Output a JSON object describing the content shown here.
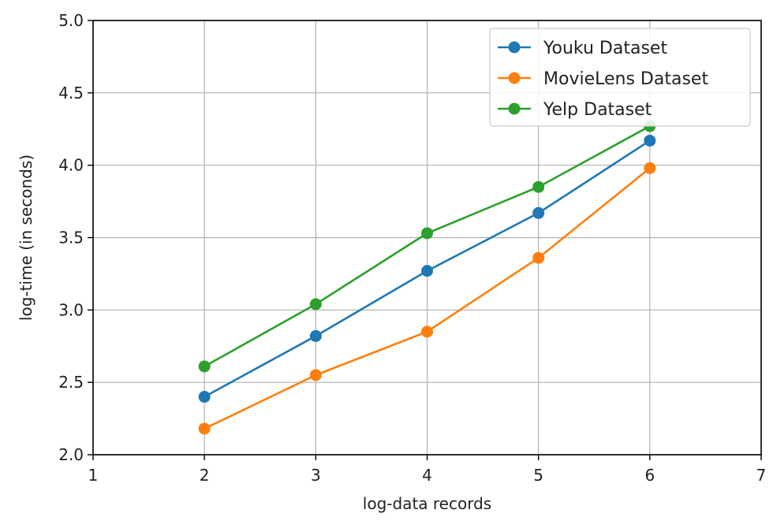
{
  "chart_data": {
    "type": "line",
    "title": "",
    "xlabel": "log-data records",
    "ylabel": "log-time (in seconds)",
    "xlim": [
      1,
      7
    ],
    "ylim": [
      2.0,
      5.0
    ],
    "xticks": [
      1,
      2,
      3,
      4,
      5,
      6,
      7
    ],
    "xtick_labels": [
      "1",
      "2",
      "3",
      "4",
      "5",
      "6",
      "7"
    ],
    "yticks": [
      2.0,
      2.5,
      3.0,
      3.5,
      4.0,
      4.5,
      5.0
    ],
    "ytick_labels": [
      "2.0",
      "2.5",
      "3.0",
      "3.5",
      "4.0",
      "4.5",
      "5.0"
    ],
    "grid": true,
    "legend_position": "top-right",
    "x": [
      2,
      3,
      4,
      5,
      6
    ],
    "series": [
      {
        "name": "Youku Dataset",
        "color": "#1f77b4",
        "values": [
          2.4,
          2.82,
          3.27,
          3.67,
          4.17
        ]
      },
      {
        "name": "MovieLens Dataset",
        "color": "#ff7f0e",
        "values": [
          2.18,
          2.55,
          2.85,
          3.36,
          3.98
        ]
      },
      {
        "name": "Yelp Dataset",
        "color": "#2ca02c",
        "values": [
          2.61,
          3.04,
          3.53,
          3.85,
          4.27
        ]
      }
    ]
  }
}
